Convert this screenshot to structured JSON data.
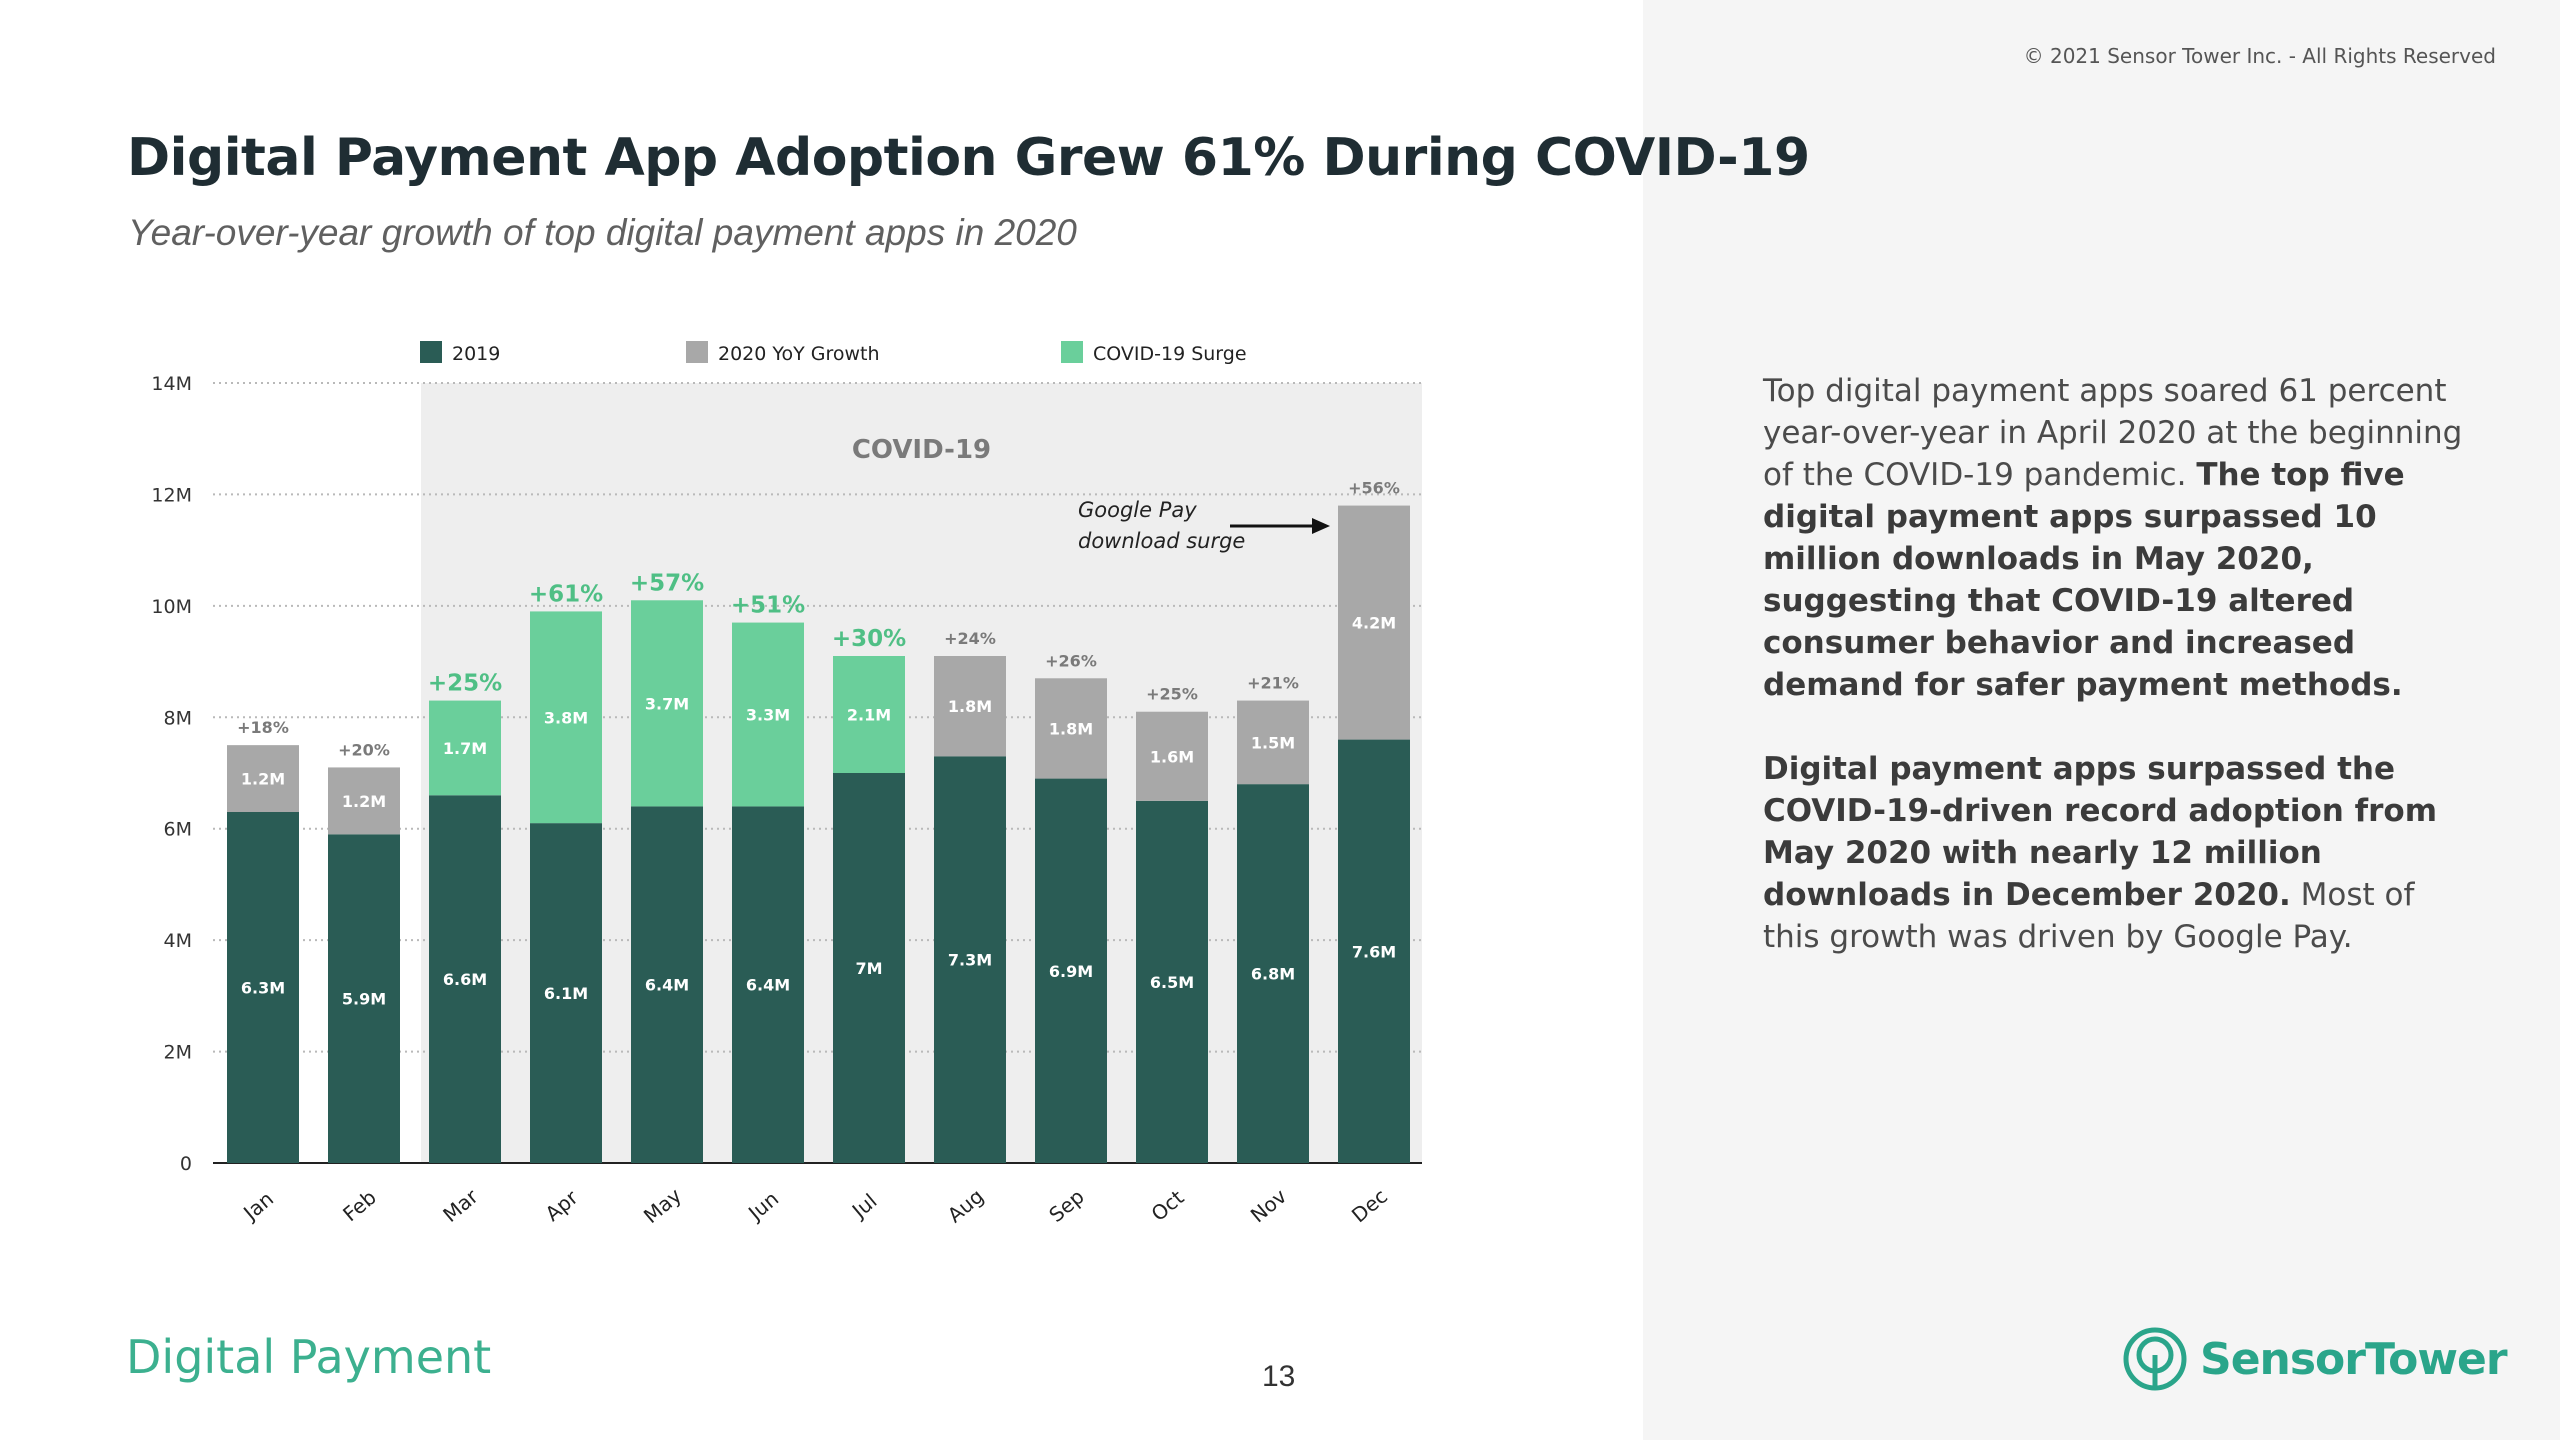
{
  "header": {
    "copyright": "© 2021 Sensor Tower Inc. - All Rights Reserved",
    "title": "Digital Payment App Adoption Grew 61% During COVID-19",
    "subtitle": "Year-over-year growth of top digital payment apps in 2020"
  },
  "body": {
    "p1_plain": "Top digital payment apps soared 61 percent year-over-year in April 2020 at the beginning of the COVID-19 pandemic. ",
    "p1_bold": "The top five digital payment apps surpassed 10 million downloads in May 2020, suggesting that COVID-19 altered consumer behavior and increased demand for safer payment methods.",
    "p2_bold": "Digital payment apps surpassed the COVID-19-driven record adoption from May 2020 with nearly 12 million downloads in December 2020.",
    "p2_plain": " Most of this growth was driven by Google Pay."
  },
  "footer": {
    "section": "Digital Payment",
    "page": "13",
    "brand_name": "SensorTower"
  },
  "colors": {
    "base": "#2a5c55",
    "growth": "#a8a8a8",
    "surge": "#6acf9b",
    "surge_text": "#4fbf85",
    "covid_band": "#eeeeee"
  },
  "chart_data": {
    "type": "bar",
    "stacked": true,
    "categories": [
      "Jan",
      "Feb",
      "Mar",
      "Apr",
      "May",
      "Jun",
      "Jul",
      "Aug",
      "Sep",
      "Oct",
      "Nov",
      "Dec"
    ],
    "series": [
      {
        "name": "2019",
        "values": [
          6.3,
          5.9,
          6.6,
          6.1,
          6.4,
          6.4,
          7.0,
          7.3,
          6.9,
          6.5,
          6.8,
          7.6
        ],
        "labels": [
          "6.3M",
          "5.9M",
          "6.6M",
          "6.1M",
          "6.4M",
          "6.4M",
          "7M",
          "7.3M",
          "6.9M",
          "6.5M",
          "6.8M",
          "7.6M"
        ]
      },
      {
        "name": "2020 YoY Growth",
        "values": [
          1.2,
          1.2,
          0,
          0,
          0,
          0,
          0,
          1.8,
          1.8,
          1.6,
          1.5,
          4.2
        ],
        "labels": [
          "1.2M",
          "1.2M",
          "",
          "",
          "",
          "",
          "",
          "1.8M",
          "1.8M",
          "1.6M",
          "1.5M",
          "4.2M"
        ]
      },
      {
        "name": "COVID-19 Surge",
        "values": [
          0,
          0,
          1.7,
          3.8,
          3.7,
          3.3,
          2.1,
          0,
          0,
          0,
          0,
          0
        ],
        "labels": [
          "",
          "",
          "1.7M",
          "3.8M",
          "3.7M",
          "3.3M",
          "2.1M",
          "",
          "",
          "",
          "",
          ""
        ]
      }
    ],
    "growth_pct": [
      "+18%",
      "+20%",
      "+25%",
      "+61%",
      "+57%",
      "+51%",
      "+30%",
      "+24%",
      "+26%",
      "+25%",
      "+21%",
      "+56%"
    ],
    "yticks": [
      "0",
      "2M",
      "4M",
      "6M",
      "8M",
      "10M",
      "12M",
      "14M"
    ],
    "ylim": [
      0,
      14
    ],
    "grid": true,
    "legend": "top",
    "band": {
      "label": "COVID-19",
      "from": "Mar",
      "to": "Dec"
    },
    "annotation": {
      "lines": [
        "Google Pay",
        "download surge"
      ],
      "target": "Dec"
    }
  }
}
